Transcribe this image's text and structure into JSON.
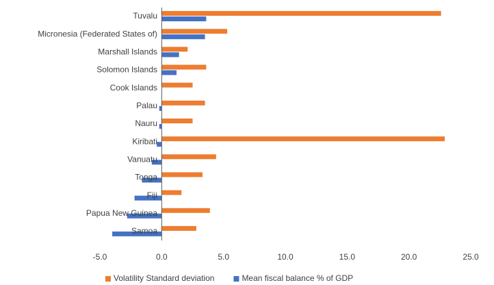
{
  "chart_data": {
    "type": "hbar",
    "categories": [
      "Tuvalu",
      "Micronesia (Federated States of)",
      "Marshall Islands",
      "Solomon Islands",
      "Cook Islands",
      "Palau",
      "Nauru",
      "Kiribati",
      "Vanuatu",
      "Tonga",
      "Fiji",
      "Papua New Guinea",
      "Samoa"
    ],
    "series": [
      {
        "name": "Volatility Standard deviation",
        "color": "#ED7D31",
        "values": [
          22.6,
          5.3,
          2.1,
          3.6,
          2.5,
          3.5,
          2.5,
          22.9,
          4.4,
          3.3,
          1.6,
          3.9,
          2.8
        ]
      },
      {
        "name": "Mean fiscal balance  % of GDP",
        "color": "#4472C4",
        "values": [
          3.6,
          3.5,
          1.4,
          1.2,
          0,
          -0.2,
          -0.2,
          -0.4,
          -0.8,
          -1.6,
          -2.2,
          -2.8,
          -4.0
        ]
      }
    ],
    "xlim": [
      -5,
      25
    ],
    "xticks": [
      {
        "value": -5,
        "label": "-5.0"
      },
      {
        "value": 0,
        "label": "0.0"
      },
      {
        "value": 5,
        "label": "5.0"
      },
      {
        "value": 10,
        "label": "10.0"
      },
      {
        "value": 15,
        "label": "15.0"
      },
      {
        "value": 20,
        "label": "20.0"
      },
      {
        "value": 25,
        "label": "25.0"
      }
    ],
    "grid": false,
    "legend": "bottom"
  }
}
